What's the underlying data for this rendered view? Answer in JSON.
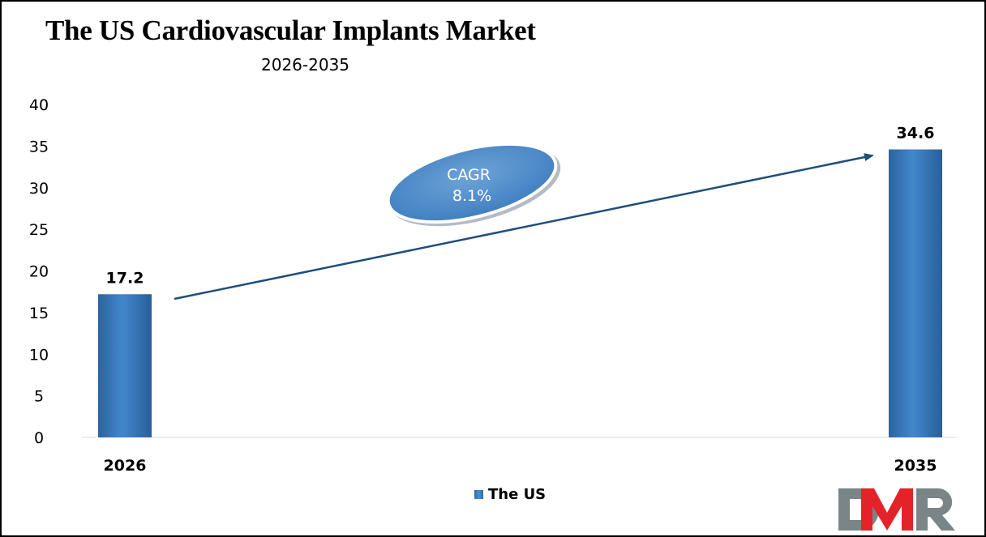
{
  "chart_data": {
    "type": "bar",
    "title": "The US Cardiovascular Implants Market",
    "subtitle": "2026-2035",
    "categories": [
      "2026",
      "2035"
    ],
    "series": [
      {
        "name": "The US",
        "values": [
          17.2,
          34.6
        ],
        "color": "#3a7cc2"
      }
    ],
    "data_labels": [
      "17.2",
      "34.6"
    ],
    "ylim": [
      0,
      40
    ],
    "yticks": [
      0,
      5,
      10,
      15,
      20,
      25,
      30,
      35,
      40
    ],
    "grid": false,
    "legend": "bottom-center",
    "annotation": {
      "line1": "CAGR",
      "line2": "8.1%"
    }
  },
  "logo": {
    "text": "DMR",
    "colors": [
      "#7a8587",
      "#e32229"
    ]
  }
}
